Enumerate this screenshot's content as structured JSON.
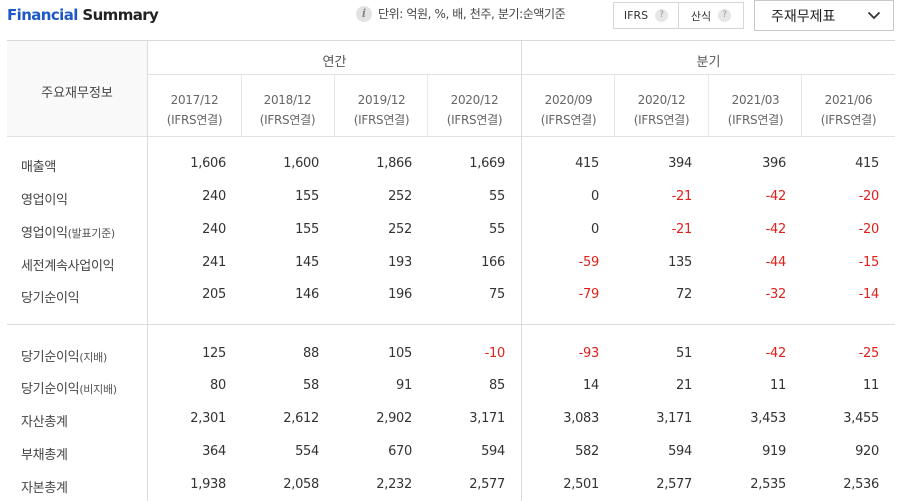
{
  "header": {
    "title_part1": "Financial",
    "title_part2": "Summary",
    "unit_text": "단위: 억원, %, 배, 천주, 분기:순액기준",
    "basis_options": [
      "IFRS",
      "산식"
    ],
    "statement_select": "주재무제표"
  },
  "icons": {
    "info": "info-icon",
    "help": "question-icon",
    "dropdown": "chevron-down-icon"
  },
  "colors": {
    "title_accent": "#1f58c4",
    "negative": "#e0201c"
  },
  "table": {
    "corner_label": "주요재무정보",
    "group_annual": "연간",
    "group_quarterly": "분기",
    "columns": [
      {
        "period": "2017/12",
        "basis": "(IFRS연결)"
      },
      {
        "period": "2018/12",
        "basis": "(IFRS연결)"
      },
      {
        "period": "2019/12",
        "basis": "(IFRS연결)"
      },
      {
        "period": "2020/12",
        "basis": "(IFRS연결)"
      },
      {
        "period": "2020/09",
        "basis": "(IFRS연결)"
      },
      {
        "period": "2020/12",
        "basis": "(IFRS연결)"
      },
      {
        "period": "2021/03",
        "basis": "(IFRS연결)"
      },
      {
        "period": "2021/06",
        "basis": "(IFRS연결)"
      }
    ],
    "rows": [
      {
        "label": "매출액",
        "sub": "",
        "values": [
          "1,606",
          "1,600",
          "1,866",
          "1,669",
          "415",
          "394",
          "396",
          "415"
        ]
      },
      {
        "label": "영업이익",
        "sub": "",
        "values": [
          "240",
          "155",
          "252",
          "55",
          "0",
          "-21",
          "-42",
          "-20"
        ]
      },
      {
        "label": "영업이익",
        "sub": "(발표기준)",
        "values": [
          "240",
          "155",
          "252",
          "55",
          "0",
          "-21",
          "-42",
          "-20"
        ]
      },
      {
        "label": "세전계속사업이익",
        "sub": "",
        "values": [
          "241",
          "145",
          "193",
          "166",
          "-59",
          "135",
          "-44",
          "-15"
        ]
      },
      {
        "label": "당기순이익",
        "sub": "",
        "values": [
          "205",
          "146",
          "196",
          "75",
          "-79",
          "72",
          "-32",
          "-14"
        ]
      },
      {
        "label": "당기순이익",
        "sub": "(지배)",
        "values": [
          "125",
          "88",
          "105",
          "-10",
          "-93",
          "51",
          "-42",
          "-25"
        ]
      },
      {
        "label": "당기순이익",
        "sub": "(비지배)",
        "values": [
          "80",
          "58",
          "91",
          "85",
          "14",
          "21",
          "11",
          "11"
        ]
      },
      {
        "label": "자산총계",
        "sub": "",
        "values": [
          "2,301",
          "2,612",
          "2,902",
          "3,171",
          "3,083",
          "3,171",
          "3,453",
          "3,455"
        ]
      },
      {
        "label": "부채총계",
        "sub": "",
        "values": [
          "364",
          "554",
          "670",
          "594",
          "582",
          "594",
          "919",
          "920"
        ]
      },
      {
        "label": "자본총계",
        "sub": "",
        "values": [
          "1,938",
          "2,058",
          "2,232",
          "2,577",
          "2,501",
          "2,577",
          "2,535",
          "2,536"
        ]
      }
    ]
  }
}
